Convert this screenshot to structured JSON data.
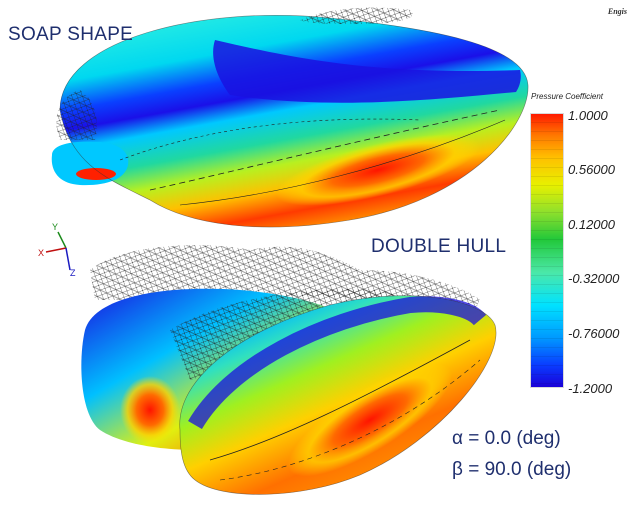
{
  "labels": {
    "top_body": "SOAP SHAPE",
    "bottom_body": "DOUBLE HULL",
    "logo": "Engis"
  },
  "legend": {
    "title": "Pressure Coefficient",
    "ticks": [
      "1.0000",
      "0.56000",
      "0.12000",
      "-0.32000",
      "-0.76000",
      "-1.2000"
    ],
    "range": [
      -1.2,
      1.0
    ],
    "colors": [
      "#1a00d8",
      "#0099ff",
      "#00e2ff",
      "#22c83a",
      "#e8f000",
      "#ff7a00",
      "#ff1a00"
    ]
  },
  "conditions": {
    "alpha_symbol": "α",
    "alpha_value": "= 0.0 (deg)",
    "beta_symbol": "β",
    "beta_value": "= 90.0 (deg)"
  },
  "axes": {
    "x": "X",
    "y": "Y",
    "z": "Z"
  }
}
